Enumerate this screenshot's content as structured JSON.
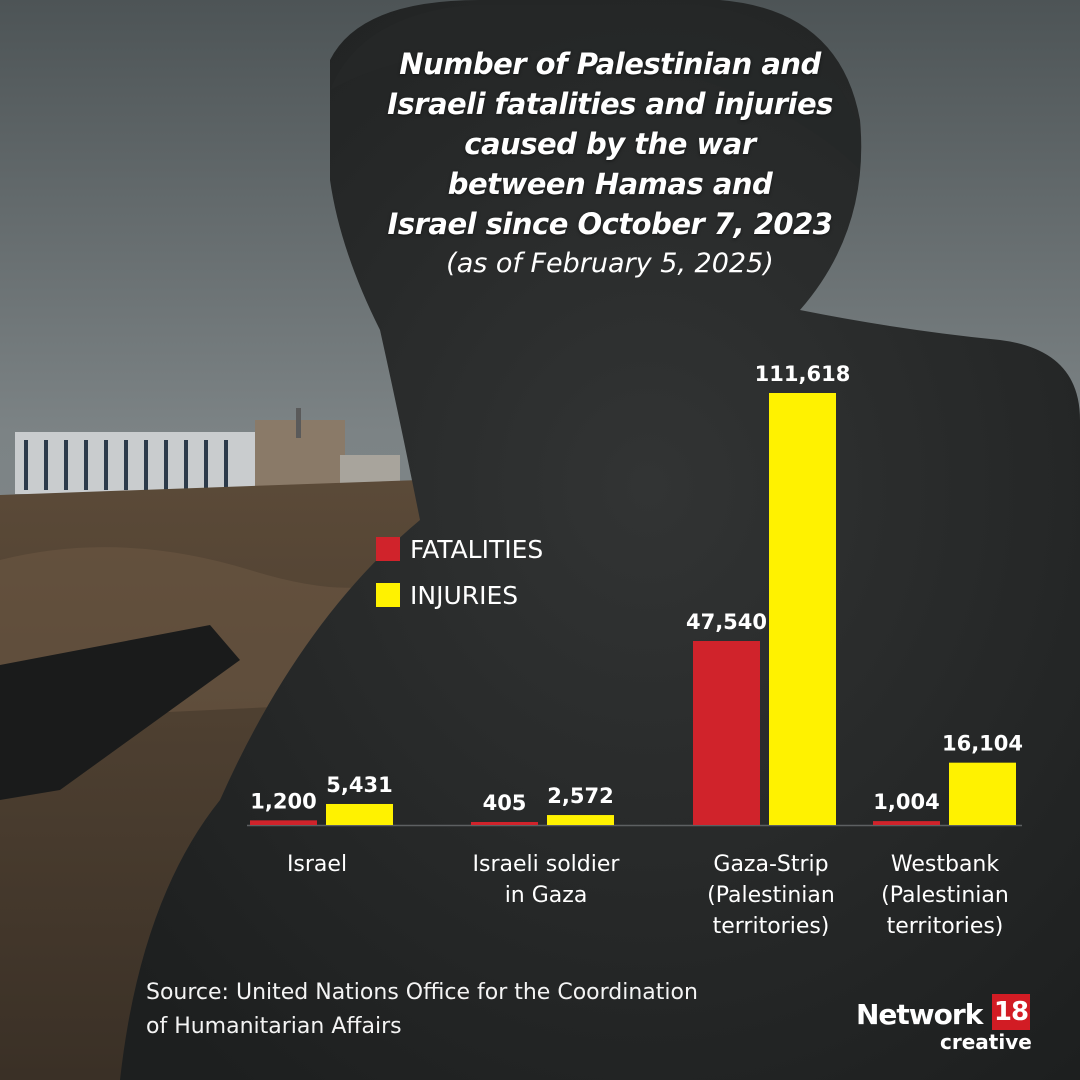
{
  "title_lines": [
    "Number of Palestinian and",
    "Israeli fatalities and injuries",
    "caused by the war",
    "between Hamas and",
    "Israel since October 7, 2023"
  ],
  "subtitle": "(as of February 5, 2025)",
  "source_lines": [
    "Source: United Nations Office for the Coordination",
    "of Humanitarian Affairs"
  ],
  "brand": {
    "name": "Network",
    "number": "18",
    "sub": "creative"
  },
  "colors": {
    "fatalities": "#d0232b",
    "injuries": "#fff200"
  },
  "chart_data": {
    "type": "bar",
    "title": "Number of Palestinian and Israeli fatalities and injuries caused by the war between Hamas and Israel since October 7, 2023",
    "subtitle": "(as of February 5, 2025)",
    "categories": [
      [
        "Israel"
      ],
      [
        "Israeli soldier",
        "in Gaza"
      ],
      [
        "Gaza-Strip",
        "(Palestinian",
        "territories)"
      ],
      [
        "Westbank",
        "(Palestinian",
        "territories)"
      ]
    ],
    "series": [
      {
        "name": "FATALITIES",
        "values": [
          1200,
          405,
          47540,
          1004
        ],
        "labels": [
          "1,200",
          "405",
          "47,540",
          "1,004"
        ]
      },
      {
        "name": "INJURIES",
        "values": [
          5431,
          2572,
          111618,
          16104
        ],
        "labels": [
          "5,431",
          "2,572",
          "111,618",
          "16,104"
        ]
      }
    ],
    "legend": "middle-left",
    "grid": false,
    "xlabel": "",
    "ylabel": ""
  }
}
